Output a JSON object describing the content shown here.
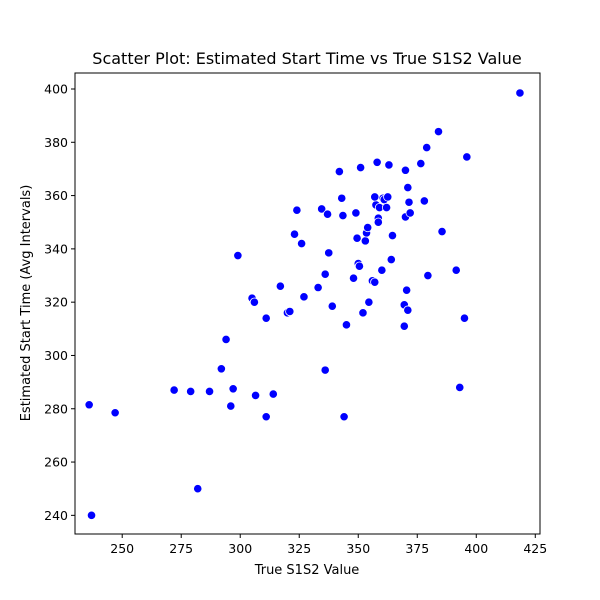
{
  "chart_data": {
    "type": "scatter",
    "title": "Scatter Plot: Estimated Start Time vs True S1S2 Value",
    "xlabel": "True S1S2 Value",
    "ylabel": "Estimated Start Time (Avg Intervals)",
    "xlim": [
      230,
      427
    ],
    "ylim": [
      233,
      406
    ],
    "xticks": [
      250,
      275,
      300,
      325,
      350,
      375,
      400,
      425
    ],
    "yticks": [
      240,
      260,
      280,
      300,
      320,
      340,
      360,
      380,
      400
    ],
    "grid": false,
    "point_color": "#0000ff",
    "points": [
      [
        236,
        281.5
      ],
      [
        237,
        240
      ],
      [
        247,
        278.5
      ],
      [
        272,
        287
      ],
      [
        279,
        286.5
      ],
      [
        282,
        250
      ],
      [
        287,
        286.5
      ],
      [
        292,
        295
      ],
      [
        294,
        306
      ],
      [
        296,
        281
      ],
      [
        297,
        287.5
      ],
      [
        299,
        337.5
      ],
      [
        305,
        321.5
      ],
      [
        306,
        320
      ],
      [
        306.5,
        285
      ],
      [
        311,
        314
      ],
      [
        311,
        277
      ],
      [
        314,
        285.5
      ],
      [
        317,
        326
      ],
      [
        320,
        316
      ],
      [
        321,
        316.5
      ],
      [
        323,
        345.5
      ],
      [
        324,
        354.5
      ],
      [
        326,
        342
      ],
      [
        327,
        322
      ],
      [
        333,
        325.5
      ],
      [
        334.5,
        355
      ],
      [
        336,
        330.5
      ],
      [
        336,
        294.5
      ],
      [
        337,
        353
      ],
      [
        337.5,
        338.5
      ],
      [
        339,
        318.5
      ],
      [
        342,
        369
      ],
      [
        343,
        359
      ],
      [
        343.5,
        352.5
      ],
      [
        344,
        277
      ],
      [
        345,
        311.5
      ],
      [
        348,
        329
      ],
      [
        349,
        353.5
      ],
      [
        349.5,
        344
      ],
      [
        350,
        334.5
      ],
      [
        350.5,
        333.5
      ],
      [
        351,
        370.5
      ],
      [
        352,
        316
      ],
      [
        353,
        343
      ],
      [
        353.5,
        346
      ],
      [
        354,
        348
      ],
      [
        354.5,
        320
      ],
      [
        356,
        328
      ],
      [
        357,
        327.5
      ],
      [
        357.5,
        356.5
      ],
      [
        357,
        359.5
      ],
      [
        358,
        372.5
      ],
      [
        358.5,
        351.5
      ],
      [
        358.5,
        350
      ],
      [
        359,
        355.5
      ],
      [
        360,
        332
      ],
      [
        360.5,
        359
      ],
      [
        361,
        358.5
      ],
      [
        362,
        355.5
      ],
      [
        362.5,
        359.5
      ],
      [
        363,
        371.5
      ],
      [
        364,
        336
      ],
      [
        364.5,
        345
      ],
      [
        369.5,
        319
      ],
      [
        369.5,
        311
      ],
      [
        370,
        352
      ],
      [
        370,
        369.5
      ],
      [
        370.5,
        324.5
      ],
      [
        371,
        317
      ],
      [
        371,
        363
      ],
      [
        371.5,
        357.5
      ],
      [
        372,
        353.5
      ],
      [
        376.5,
        372
      ],
      [
        378,
        358
      ],
      [
        379,
        378
      ],
      [
        379.5,
        330
      ],
      [
        384,
        384
      ],
      [
        385.5,
        346.5
      ],
      [
        391.5,
        332
      ],
      [
        393,
        288
      ],
      [
        395,
        314
      ],
      [
        396,
        374.5
      ],
      [
        418.5,
        398.5
      ]
    ]
  }
}
